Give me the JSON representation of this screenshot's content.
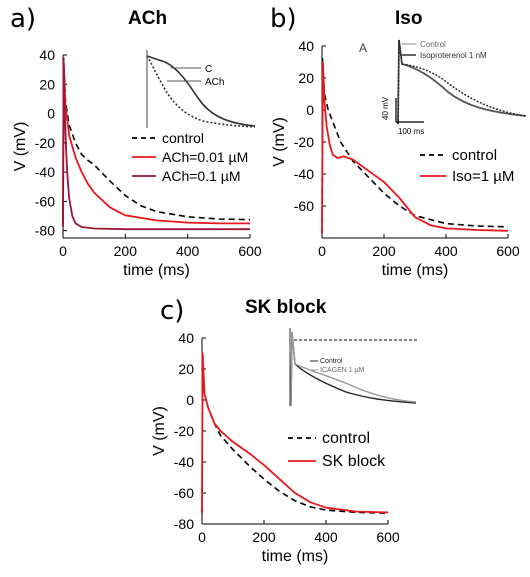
{
  "colors": {
    "control": "#000000",
    "ach_low": "#e8171b",
    "ach_high": "#9c1535",
    "iso": "#e8171b",
    "sk": "#e8171b"
  },
  "panels": [
    {
      "letter": "a)",
      "title": "ACh"
    },
    {
      "letter": "b)",
      "title": "Iso"
    },
    {
      "letter": "c)",
      "title": "SK block"
    }
  ],
  "insets": {
    "a": {
      "label_c": "C",
      "label_ach": "ACh"
    },
    "b": {
      "panel_letter": "A",
      "legend_control": "Control",
      "legend_iso": "Isoproterenol 1 nM",
      "scale_v": "40 mV",
      "scale_t": "100 ms"
    },
    "c": {
      "legend_control": "Control",
      "legend_icagen": "ICAGEN 1 µM"
    }
  },
  "chart_data": [
    {
      "type": "line",
      "xlabel": "time (ms)",
      "ylabel": "V (mV)",
      "xlim": [
        0,
        600
      ],
      "ylim": [
        -85,
        40
      ],
      "xticks": [
        0,
        200,
        400,
        600
      ],
      "yticks": [
        40,
        20,
        0,
        -20,
        -40,
        -60,
        -80
      ],
      "legend_position": "right",
      "series": [
        {
          "name": "control",
          "style": "dashed",
          "color": "#000000",
          "x": [
            0,
            2,
            8,
            20,
            40,
            60,
            80,
            100,
            150,
            200,
            250,
            300,
            400,
            500,
            600
          ],
          "y": [
            -77,
            36,
            8,
            -8,
            -20,
            -28,
            -32,
            -35,
            -46,
            -56,
            -63,
            -67,
            -70.5,
            -72,
            -72.5
          ]
        },
        {
          "name": "ACh=0.01 µM",
          "style": "solid",
          "color": "#e8171b",
          "x": [
            0,
            2,
            8,
            20,
            40,
            60,
            80,
            100,
            150,
            200,
            300,
            400,
            500,
            600
          ],
          "y": [
            -77,
            36,
            5,
            -15,
            -30,
            -40,
            -48,
            -54,
            -64,
            -69.5,
            -73,
            -74.5,
            -75,
            -75
          ]
        },
        {
          "name": "ACh=0.1 µM",
          "style": "solid",
          "color": "#9c1535",
          "x": [
            0,
            2,
            5,
            10,
            15,
            20,
            30,
            40,
            60,
            100,
            200,
            400,
            600
          ],
          "y": [
            -77,
            38,
            5,
            -25,
            -45,
            -58,
            -70,
            -75,
            -77.5,
            -78.5,
            -79,
            -79,
            -79
          ]
        }
      ]
    },
    {
      "type": "line",
      "xlabel": "time (ms)",
      "ylabel": "V (mV)",
      "xlim": [
        0,
        600
      ],
      "ylim": [
        -80,
        40
      ],
      "xticks": [
        0,
        200,
        400,
        600
      ],
      "yticks": [
        40,
        20,
        0,
        -20,
        -40,
        -60
      ],
      "legend_position": "right",
      "series": [
        {
          "name": "control",
          "style": "dashed",
          "color": "#000000",
          "x": [
            0,
            2,
            8,
            20,
            40,
            60,
            80,
            100,
            150,
            200,
            250,
            300,
            400,
            500,
            600
          ],
          "y": [
            -77,
            32,
            10,
            0,
            -10,
            -20,
            -26,
            -32,
            -42,
            -52,
            -60,
            -66,
            -71,
            -72.5,
            -73
          ]
        },
        {
          "name": "Iso=1 µM",
          "style": "solid",
          "color": "#e8171b",
          "x": [
            0,
            3,
            8,
            15,
            25,
            35,
            50,
            70,
            100,
            150,
            200,
            250,
            300,
            350,
            400,
            500,
            600
          ],
          "y": [
            -77,
            30,
            5,
            -10,
            -22,
            -28,
            -30,
            -29,
            -31,
            -38,
            -45,
            -55,
            -67,
            -72,
            -74,
            -75,
            -75.5
          ]
        }
      ]
    },
    {
      "type": "line",
      "xlabel": "time (ms)",
      "ylabel": "V (mV)",
      "xlim": [
        0,
        600
      ],
      "ylim": [
        -80,
        40
      ],
      "xticks": [
        0,
        200,
        400,
        600
      ],
      "yticks": [
        40,
        20,
        0,
        -20,
        -40,
        -60,
        -80
      ],
      "legend_position": "right",
      "series": [
        {
          "name": "control",
          "style": "dashed",
          "color": "#000000",
          "x": [
            0,
            2,
            8,
            20,
            40,
            60,
            100,
            150,
            200,
            250,
            300,
            350,
            400,
            500,
            600
          ],
          "y": [
            -73,
            30,
            4,
            -5,
            -15,
            -23,
            -32,
            -42,
            -51,
            -59,
            -65,
            -69,
            -71,
            -72.5,
            -73
          ]
        },
        {
          "name": "SK block",
          "style": "solid",
          "color": "#e8171b",
          "x": [
            0,
            2,
            8,
            20,
            40,
            60,
            100,
            150,
            200,
            250,
            300,
            350,
            400,
            500,
            600
          ],
          "y": [
            -73,
            30,
            4,
            -5,
            -15,
            -20,
            -27,
            -34,
            -42,
            -51,
            -60,
            -66,
            -69.5,
            -72,
            -72.5
          ]
        }
      ]
    }
  ]
}
